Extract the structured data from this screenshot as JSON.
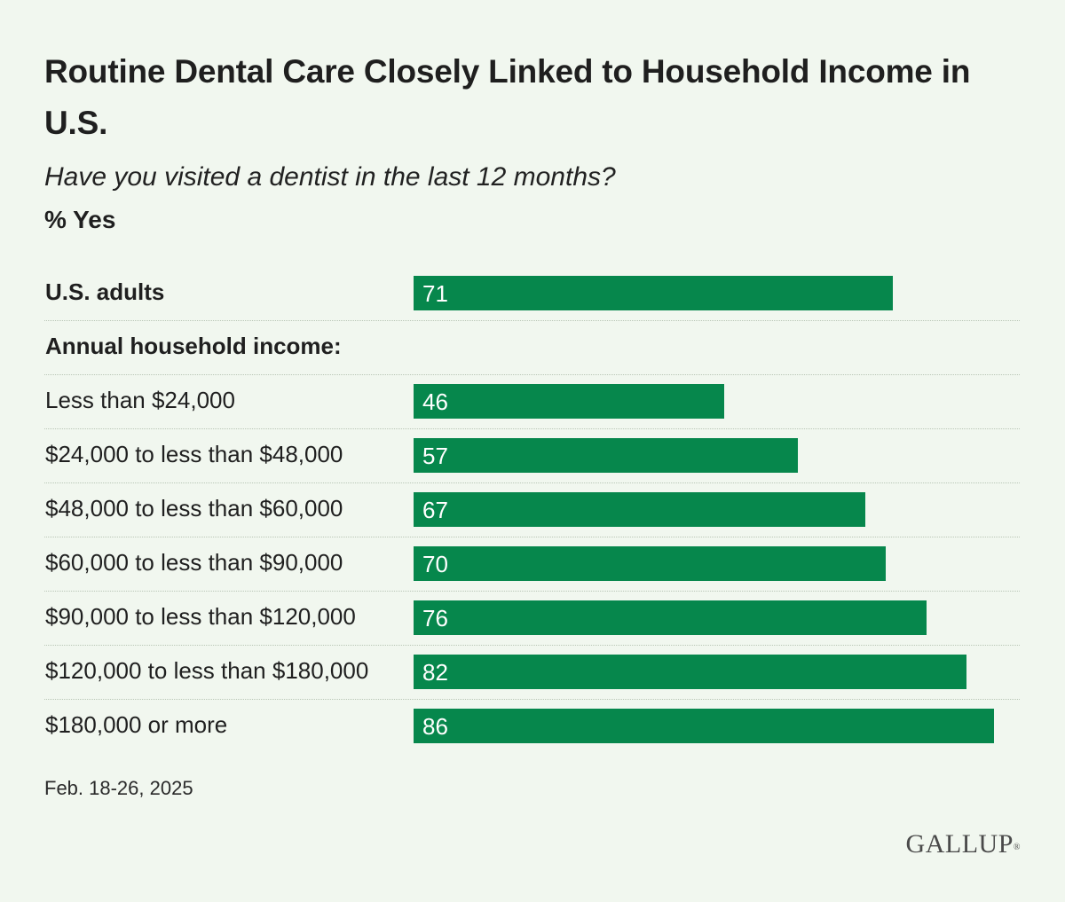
{
  "title": "Routine Dental Care Closely Linked to Household Income in U.S.",
  "subtitle": "Have you visited a dentist in the last 12 months?",
  "unit_label": "% Yes",
  "footnote": "Feb. 18-26, 2025",
  "logo": "GALLUP",
  "colors": {
    "bar": "#06874c",
    "background": "#f1f7ef"
  },
  "chart_data": {
    "type": "bar",
    "orientation": "horizontal",
    "title": "Routine Dental Care Closely Linked to Household Income in U.S.",
    "subtitle": "Have you visited a dentist in the last 12 months?",
    "unit": "% Yes",
    "group_header": "Annual household income:",
    "categories": [
      "U.S. adults",
      "Less than $24,000",
      "$24,000 to less than $48,000",
      "$48,000 to less than $60,000",
      "$60,000 to less than $90,000",
      "$90,000 to less than $120,000",
      "$120,000 to less than $180,000",
      "$180,000 or more"
    ],
    "values": [
      71,
      46,
      57,
      67,
      70,
      76,
      82,
      86
    ],
    "xlim": [
      0,
      100
    ],
    "grid": false,
    "legend": "none"
  }
}
